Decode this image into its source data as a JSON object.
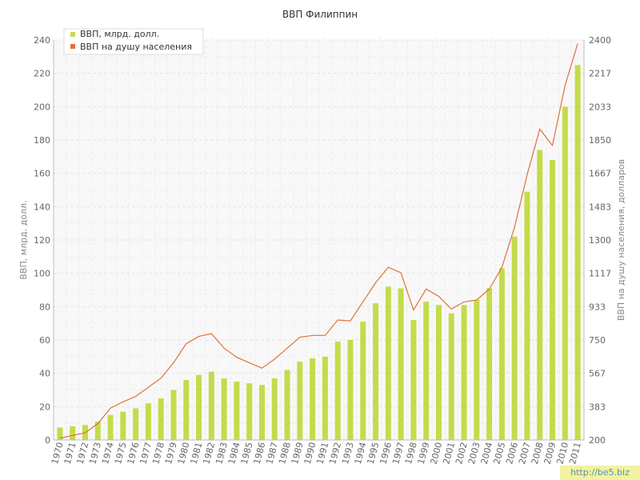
{
  "chart_data": {
    "type": "bar",
    "title": "ВВП Филиппин",
    "ylabel": "ВВП, млрд. долл.",
    "y2label": "ВВП на душу населения, долларов",
    "ylim": [
      0,
      240
    ],
    "y2lim": [
      200,
      2400
    ],
    "yticks": [
      "0",
      "20",
      "40",
      "60",
      "80",
      "100",
      "120",
      "140",
      "160",
      "180",
      "200",
      "220",
      "240"
    ],
    "y2ticks": [
      "200",
      "383",
      "567",
      "750",
      "933",
      "1117",
      "1300",
      "1483",
      "1667",
      "1850",
      "2033",
      "2217",
      "2400"
    ],
    "categories": [
      "1970",
      "1971",
      "1972",
      "1973",
      "1974",
      "1975",
      "1976",
      "1977",
      "1978",
      "1979",
      "1980",
      "1981",
      "1982",
      "1983",
      "1984",
      "1985",
      "1986",
      "1987",
      "1988",
      "1989",
      "1990",
      "1991",
      "1992",
      "1993",
      "1994",
      "1995",
      "1996",
      "1997",
      "1998",
      "1999",
      "2000",
      "2001",
      "2002",
      "2003",
      "2004",
      "2005",
      "2006",
      "2007",
      "2008",
      "2009",
      "2010",
      "2011"
    ],
    "series": [
      {
        "name": "ВВП, млрд. долл.",
        "kind": "bar",
        "axis": "left",
        "color": "#c3dc4a",
        "values": [
          7.5,
          8.2,
          9,
          11,
          15,
          17,
          19,
          22,
          25,
          30,
          36,
          39,
          41,
          37,
          35,
          34,
          33,
          37,
          42,
          47,
          49,
          50,
          59,
          60,
          71,
          82,
          92,
          91,
          72,
          83,
          81,
          76,
          81,
          84,
          91,
          103,
          122,
          149,
          174,
          168,
          200,
          225
        ]
      },
      {
        "name": "ВВП на душу населения",
        "kind": "line",
        "axis": "right",
        "color": "#e2703a",
        "values": [
          210,
          225,
          240,
          290,
          375,
          410,
          440,
          490,
          540,
          625,
          730,
          770,
          785,
          705,
          655,
          625,
          595,
          645,
          705,
          765,
          775,
          775,
          860,
          855,
          960,
          1065,
          1150,
          1120,
          915,
          1030,
          990,
          920,
          960,
          970,
          1030,
          1150,
          1370,
          1660,
          1910,
          1820,
          2150,
          2380
        ]
      }
    ],
    "grid": true,
    "legend_position": "top-left"
  },
  "watermark": "http://be5.biz"
}
